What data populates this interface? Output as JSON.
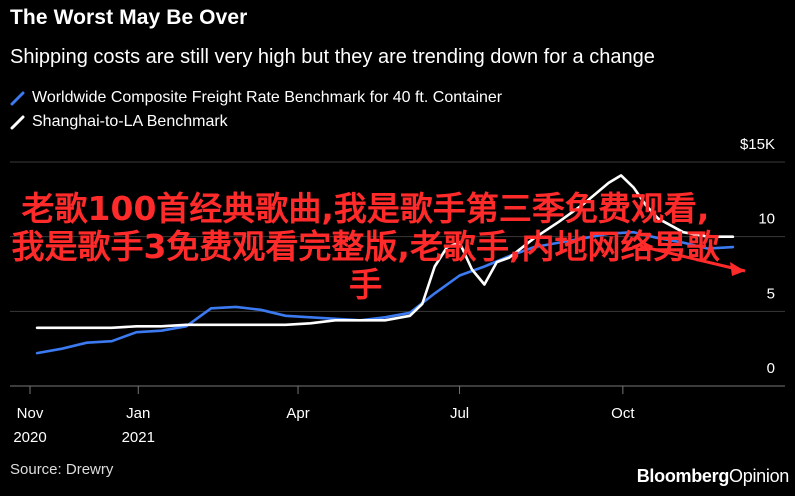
{
  "header": {
    "title": "The Worst May Be Over",
    "subtitle": "Shipping costs are still very high but they are trending down for a change"
  },
  "legend": [
    {
      "label": "Worldwide Composite Freight Rate Benchmark for 40 ft. Container",
      "color": "#3b7af0"
    },
    {
      "label": "Shanghai-to-LA Benchmark",
      "color": "#ffffff"
    }
  ],
  "footer": {
    "source": "Source: Drewry",
    "logo_main": "Bloomberg",
    "logo_sub": "Opinion"
  },
  "watermark": {
    "text": "老歌100首经典歌曲,我是歌手第三季免费观看,我是歌手3免费观看完整版,老歌手,内地网络男歌手",
    "color": "#ff2a2a"
  },
  "chart_data": {
    "type": "line",
    "title": "The Worst May Be Over",
    "subtitle": "Shipping costs are still very high but they are trending down for a change",
    "ylabel": "",
    "ylim": [
      0,
      15
    ],
    "yticks": [
      {
        "value": 0,
        "label": "0"
      },
      {
        "value": 5,
        "label": "5"
      },
      {
        "value": 10,
        "label": "10"
      },
      {
        "value": 15,
        "label": "$15K"
      }
    ],
    "xlim": [
      "2020-11-01",
      "2021-12-06"
    ],
    "xticks": [
      {
        "date": "2020-11-01",
        "label": "Nov",
        "sublabel": "2020"
      },
      {
        "date": "2021-01-01",
        "label": "Jan",
        "sublabel": "2021"
      },
      {
        "date": "2021-04-01",
        "label": "Apr",
        "sublabel": ""
      },
      {
        "date": "2021-07-01",
        "label": "Jul",
        "sublabel": ""
      },
      {
        "date": "2021-10-01",
        "label": "Oct",
        "sublabel": ""
      }
    ],
    "grid": true,
    "legend_position": "top-left",
    "series": [
      {
        "name": "Worldwide Composite Freight Rate Benchmark for 40 ft. Container",
        "color": "#3b7af0",
        "points": [
          [
            "2020-11-05",
            2.2
          ],
          [
            "2020-11-19",
            2.5
          ],
          [
            "2020-12-03",
            2.9
          ],
          [
            "2020-12-17",
            3.0
          ],
          [
            "2020-12-31",
            3.6
          ],
          [
            "2021-01-14",
            3.7
          ],
          [
            "2021-01-28",
            4.0
          ],
          [
            "2021-02-11",
            5.2
          ],
          [
            "2021-02-25",
            5.3
          ],
          [
            "2021-03-11",
            5.1
          ],
          [
            "2021-03-25",
            4.7
          ],
          [
            "2021-04-08",
            4.6
          ],
          [
            "2021-04-22",
            4.5
          ],
          [
            "2021-05-06",
            4.4
          ],
          [
            "2021-05-20",
            4.6
          ],
          [
            "2021-06-03",
            4.9
          ],
          [
            "2021-06-17",
            6.2
          ],
          [
            "2021-07-01",
            7.4
          ],
          [
            "2021-07-15",
            8.0
          ],
          [
            "2021-07-29",
            8.7
          ],
          [
            "2021-08-12",
            9.3
          ],
          [
            "2021-08-26",
            9.6
          ],
          [
            "2021-09-09",
            9.9
          ],
          [
            "2021-09-23",
            10.2
          ],
          [
            "2021-10-07",
            10.3
          ],
          [
            "2021-10-21",
            9.9
          ],
          [
            "2021-11-04",
            9.6
          ],
          [
            "2021-11-18",
            9.2
          ],
          [
            "2021-12-02",
            9.3
          ]
        ]
      },
      {
        "name": "Shanghai-to-LA Benchmark",
        "color": "#ffffff",
        "points": [
          [
            "2020-11-05",
            3.9
          ],
          [
            "2020-11-19",
            3.9
          ],
          [
            "2020-12-03",
            3.9
          ],
          [
            "2020-12-17",
            3.9
          ],
          [
            "2020-12-31",
            4.0
          ],
          [
            "2021-01-14",
            4.0
          ],
          [
            "2021-01-28",
            4.1
          ],
          [
            "2021-02-11",
            4.1
          ],
          [
            "2021-02-25",
            4.1
          ],
          [
            "2021-03-11",
            4.1
          ],
          [
            "2021-03-25",
            4.1
          ],
          [
            "2021-04-08",
            4.2
          ],
          [
            "2021-04-22",
            4.4
          ],
          [
            "2021-05-06",
            4.4
          ],
          [
            "2021-05-20",
            4.4
          ],
          [
            "2021-06-03",
            4.7
          ],
          [
            "2021-06-10",
            5.5
          ],
          [
            "2021-06-17",
            8.0
          ],
          [
            "2021-06-24",
            9.3
          ],
          [
            "2021-07-01",
            9.6
          ],
          [
            "2021-07-08",
            7.8
          ],
          [
            "2021-07-15",
            6.8
          ],
          [
            "2021-07-22",
            8.3
          ],
          [
            "2021-07-29",
            8.6
          ],
          [
            "2021-08-12",
            9.9
          ],
          [
            "2021-08-26",
            11.0
          ],
          [
            "2021-09-09",
            12.2
          ],
          [
            "2021-09-23",
            13.6
          ],
          [
            "2021-09-30",
            14.1
          ],
          [
            "2021-10-07",
            13.3
          ],
          [
            "2021-10-14",
            12.1
          ],
          [
            "2021-10-21",
            11.2
          ],
          [
            "2021-11-04",
            10.3
          ],
          [
            "2021-11-18",
            10.0
          ],
          [
            "2021-12-02",
            10.0
          ]
        ]
      }
    ]
  }
}
